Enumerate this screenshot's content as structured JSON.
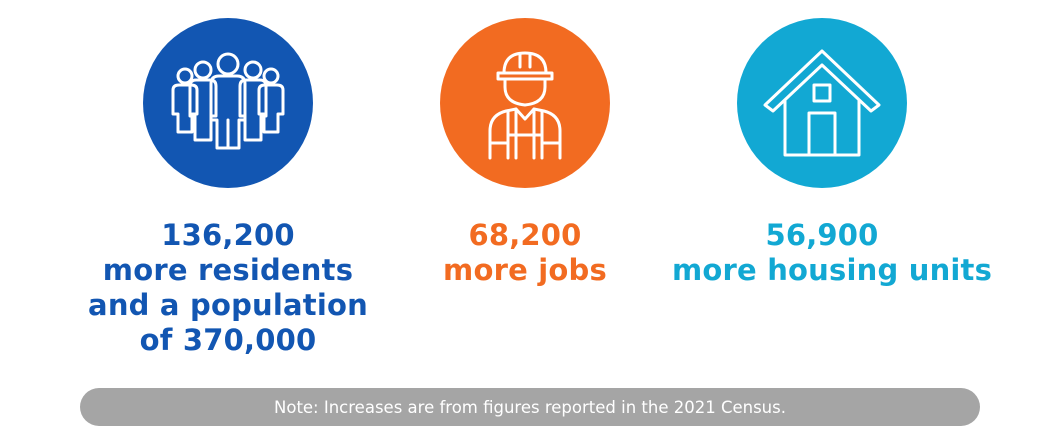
{
  "colors": {
    "residents": "#1256b2",
    "jobs": "#f26b21",
    "housing": "#12a8d3",
    "note_background": "#a5a5a5",
    "note_text": "#ffffff"
  },
  "stats": [
    {
      "icon": "people-group-icon",
      "number": "136,200",
      "lines": [
        "more residents",
        "and a population",
        "of 370,000"
      ]
    },
    {
      "icon": "construction-worker-icon",
      "number": "68,200",
      "lines": [
        "more jobs"
      ]
    },
    {
      "icon": "house-icon",
      "number": "56,900",
      "lines": [
        "more housing units"
      ]
    }
  ],
  "note": "Note: Increases are from figures reported in the 2021 Census."
}
